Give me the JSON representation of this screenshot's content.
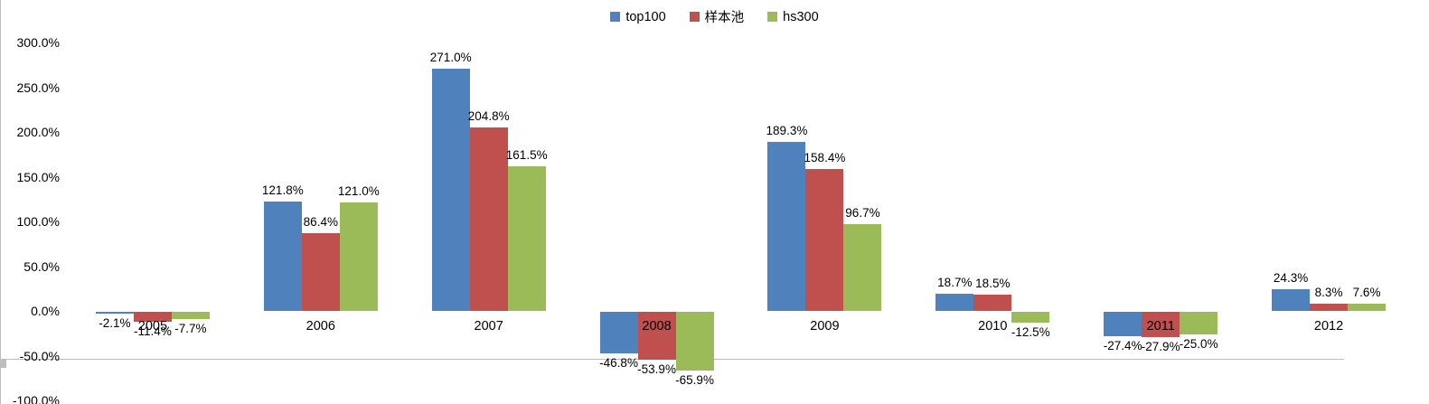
{
  "chart_data": {
    "type": "bar",
    "title": "",
    "categories": [
      "2005",
      "2006",
      "2007",
      "2008",
      "2009",
      "2010",
      "2011",
      "2012"
    ],
    "series": [
      {
        "name": "top100",
        "color": "#4F81BD",
        "values": [
          -2.1,
          121.8,
          271.0,
          -46.8,
          189.3,
          18.7,
          -27.4,
          24.3
        ],
        "labels": [
          "-2.1%",
          "121.8%",
          "271.0%",
          "-46.8%",
          "189.3%",
          "18.7%",
          "-27.4%",
          "24.3%"
        ]
      },
      {
        "name": "样本池",
        "color": "#C0504D",
        "values": [
          -11.4,
          86.4,
          204.8,
          -53.9,
          158.4,
          18.5,
          -27.9,
          8.3
        ],
        "labels": [
          "-11.4%",
          "86.4%",
          "204.8%",
          "-53.9%",
          "158.4%",
          "18.5%",
          "-27.9%",
          "8.3%"
        ]
      },
      {
        "name": "hs300",
        "color": "#9BBB59",
        "values": [
          -7.7,
          121.0,
          161.5,
          -65.9,
          96.7,
          -12.5,
          -25.0,
          7.6
        ],
        "labels": [
          "-7.7%",
          "121.0%",
          "161.5%",
          "-65.9%",
          "96.7%",
          "-12.5%",
          "-25.0%",
          "7.6%"
        ]
      }
    ],
    "y_axis": {
      "min": -100,
      "max": 300,
      "step": 50,
      "tick_labels": [
        "300.0%",
        "250.0%",
        "200.0%",
        "150.0%",
        "100.0%",
        "50.0%",
        "0.0%",
        "-50.0%",
        "-100.0%"
      ]
    },
    "x_axis": {
      "tick_labels": [
        "2005",
        "2006",
        "2007",
        "2008",
        "2009",
        "2010",
        "2011",
        "2012"
      ]
    },
    "legend": {
      "position": "top",
      "items": [
        "top100",
        "样本池",
        "hs300"
      ]
    },
    "grid": false,
    "data_labels_shown": true,
    "colors": {
      "background": "#FFFFFF",
      "axis": "#BEBEBE",
      "text": "#000000"
    }
  }
}
